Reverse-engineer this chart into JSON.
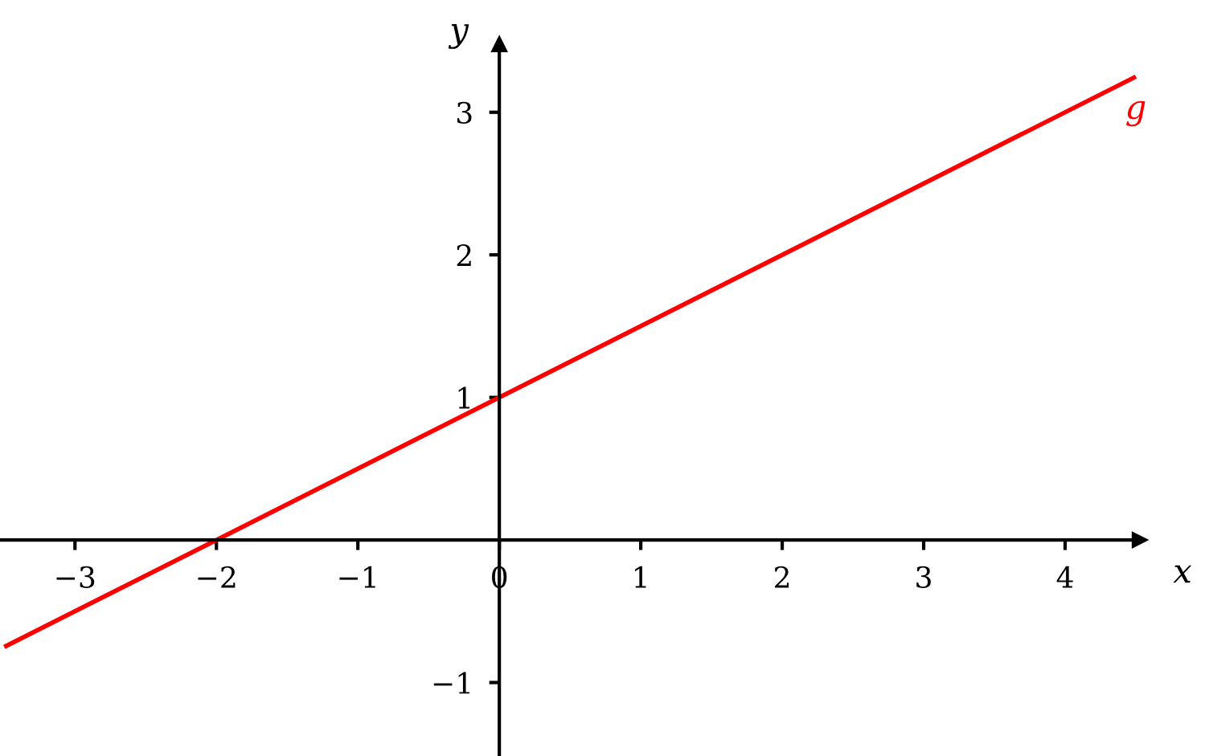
{
  "chart_data": {
    "type": "line",
    "xlabel": "x",
    "ylabel": "y",
    "x": [
      -3.5,
      4.5
    ],
    "series": [
      {
        "name": "g",
        "color": "#ff0000",
        "values": [
          -0.75,
          3.25
        ]
      }
    ],
    "xlim": [
      -3.53,
      4.53
    ],
    "ylim": [
      -1.51,
      3.48
    ],
    "xticks": [
      {
        "value": -3,
        "label": "−3"
      },
      {
        "value": -2,
        "label": "−2"
      },
      {
        "value": -1,
        "label": "−1"
      },
      {
        "value": 0,
        "label": "0"
      },
      1,
      2,
      3,
      4
    ],
    "yticks": [
      {
        "value": -1,
        "label": "−1"
      },
      1,
      2,
      3
    ],
    "grid": false,
    "legend": false,
    "marker": "none",
    "line_style": "solid"
  }
}
